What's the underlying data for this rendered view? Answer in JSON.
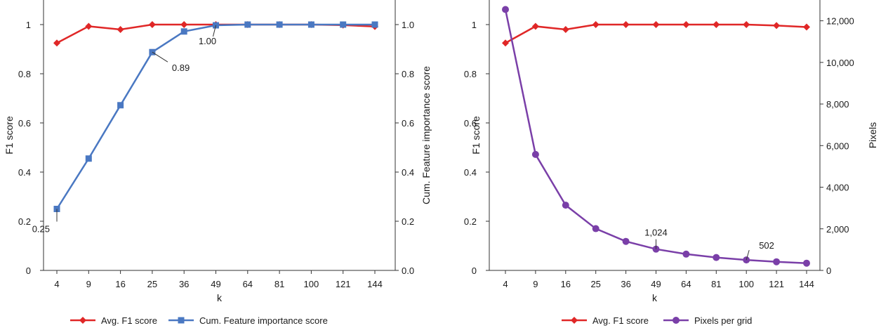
{
  "chart_data": [
    {
      "type": "line",
      "categories": [
        "4",
        "9",
        "16",
        "25",
        "36",
        "49",
        "64",
        "81",
        "100",
        "121",
        "144"
      ],
      "xlabel": "k",
      "ylabel_left": "F1 score",
      "ylabel_right": "Cum. Feature importance score",
      "ylim_left": [
        0,
        1.1
      ],
      "ylim_right": [
        0,
        1.1
      ],
      "yticks_left": [
        "0",
        "0.2",
        "0.4",
        "0.6",
        "0.8",
        "1"
      ],
      "yticks_right": [
        "0.0",
        "0.2",
        "0.4",
        "0.6",
        "0.8",
        "1.0"
      ],
      "grid": false,
      "legend_position": "bottom",
      "series": [
        {
          "name": "Avg. F1 score",
          "axis": "left",
          "color": "#e02727",
          "marker": "diamond",
          "values": [
            0.925,
            0.993,
            0.98,
            1.0,
            1.0,
            1.0,
            1.0,
            1.0,
            1.0,
            0.998,
            0.992
          ]
        },
        {
          "name": "Cum. Feature importance score",
          "axis": "right",
          "color": "#4a78c2",
          "marker": "square",
          "values": [
            0.25,
            0.455,
            0.672,
            0.888,
            0.972,
            0.997,
            1.0,
            1.0,
            1.0,
            1.0,
            1.0
          ]
        }
      ],
      "annotations": [
        {
          "text": "0.25",
          "series": 1,
          "index": 0
        },
        {
          "text": "0.89",
          "series": 1,
          "index": 3
        },
        {
          "text": "1.00",
          "series": 1,
          "index": 5
        }
      ]
    },
    {
      "type": "line",
      "categories": [
        "4",
        "9",
        "16",
        "25",
        "36",
        "49",
        "64",
        "81",
        "100",
        "121",
        "144"
      ],
      "xlabel": "k",
      "ylabel_left": "F1 score",
      "ylabel_right": "Pixels",
      "ylim_left": [
        0,
        1.1
      ],
      "ylim_right": [
        0,
        13000
      ],
      "yticks_left": [
        "0",
        "0.2",
        "0.4",
        "0.6",
        "0.8",
        "1"
      ],
      "yticks_right": [
        "0",
        "2,000",
        "4,000",
        "6,000",
        "8,000",
        "10,000",
        "12,000"
      ],
      "grid": false,
      "legend_position": "bottom",
      "series": [
        {
          "name": "Avg. F1 score",
          "axis": "left",
          "color": "#e02727",
          "marker": "diamond",
          "values": [
            0.925,
            0.993,
            0.98,
            1.0,
            1.0,
            1.0,
            1.0,
            1.0,
            1.0,
            0.996,
            0.99
          ]
        },
        {
          "name": "Pixels per grid",
          "axis": "right",
          "color": "#7a3fa8",
          "marker": "circle",
          "values": [
            12544,
            5575,
            3136,
            2007,
            1394,
            1024,
            784,
            620,
            502,
            415,
            348
          ]
        }
      ],
      "annotations": [
        {
          "text": "1,024",
          "series": 1,
          "index": 5
        },
        {
          "text": "502",
          "series": 1,
          "index": 8
        }
      ]
    }
  ]
}
